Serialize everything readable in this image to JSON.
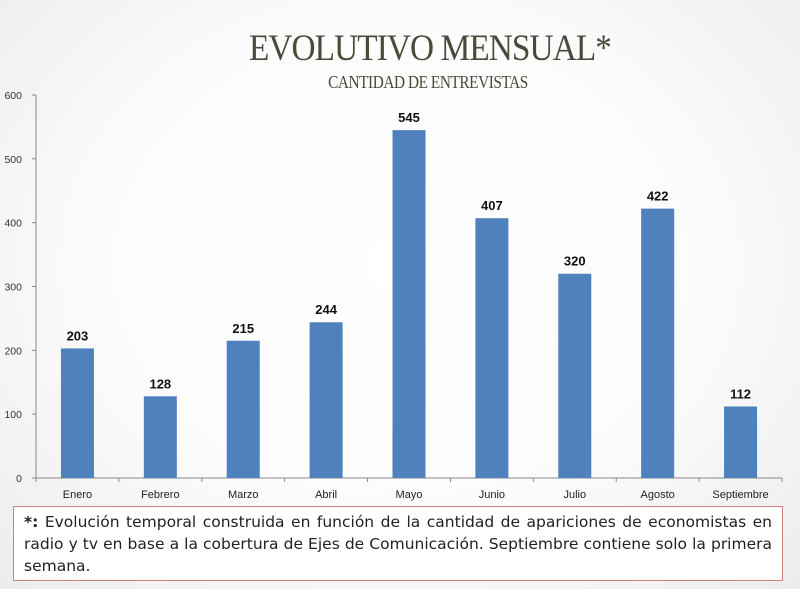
{
  "title": "EVOLUTIVO MENSUAL*",
  "subtitle": "CANTIDAD DE ENTREVISTAS",
  "footnote": {
    "marker": "*:",
    "text": "Evolución temporal construida en función de la cantidad de apariciones de economistas en radio y tv en base a la cobertura de Ejes de Comunicación. Septiembre contiene solo la primera semana."
  },
  "colors": {
    "bar": "#4f81bd"
  },
  "chart_data": {
    "type": "bar",
    "title": "",
    "categories": [
      "Enero",
      "Febrero",
      "Marzo",
      "Abril",
      "Mayo",
      "Junio",
      "Julio",
      "Agosto",
      "Septiembre"
    ],
    "values": [
      203,
      128,
      215,
      244,
      545,
      407,
      320,
      422,
      112
    ],
    "ylim": [
      0,
      600
    ],
    "yticks": [
      0,
      100,
      200,
      300,
      400,
      500,
      600
    ],
    "grid": false,
    "legend": "none",
    "data_labels": true
  }
}
